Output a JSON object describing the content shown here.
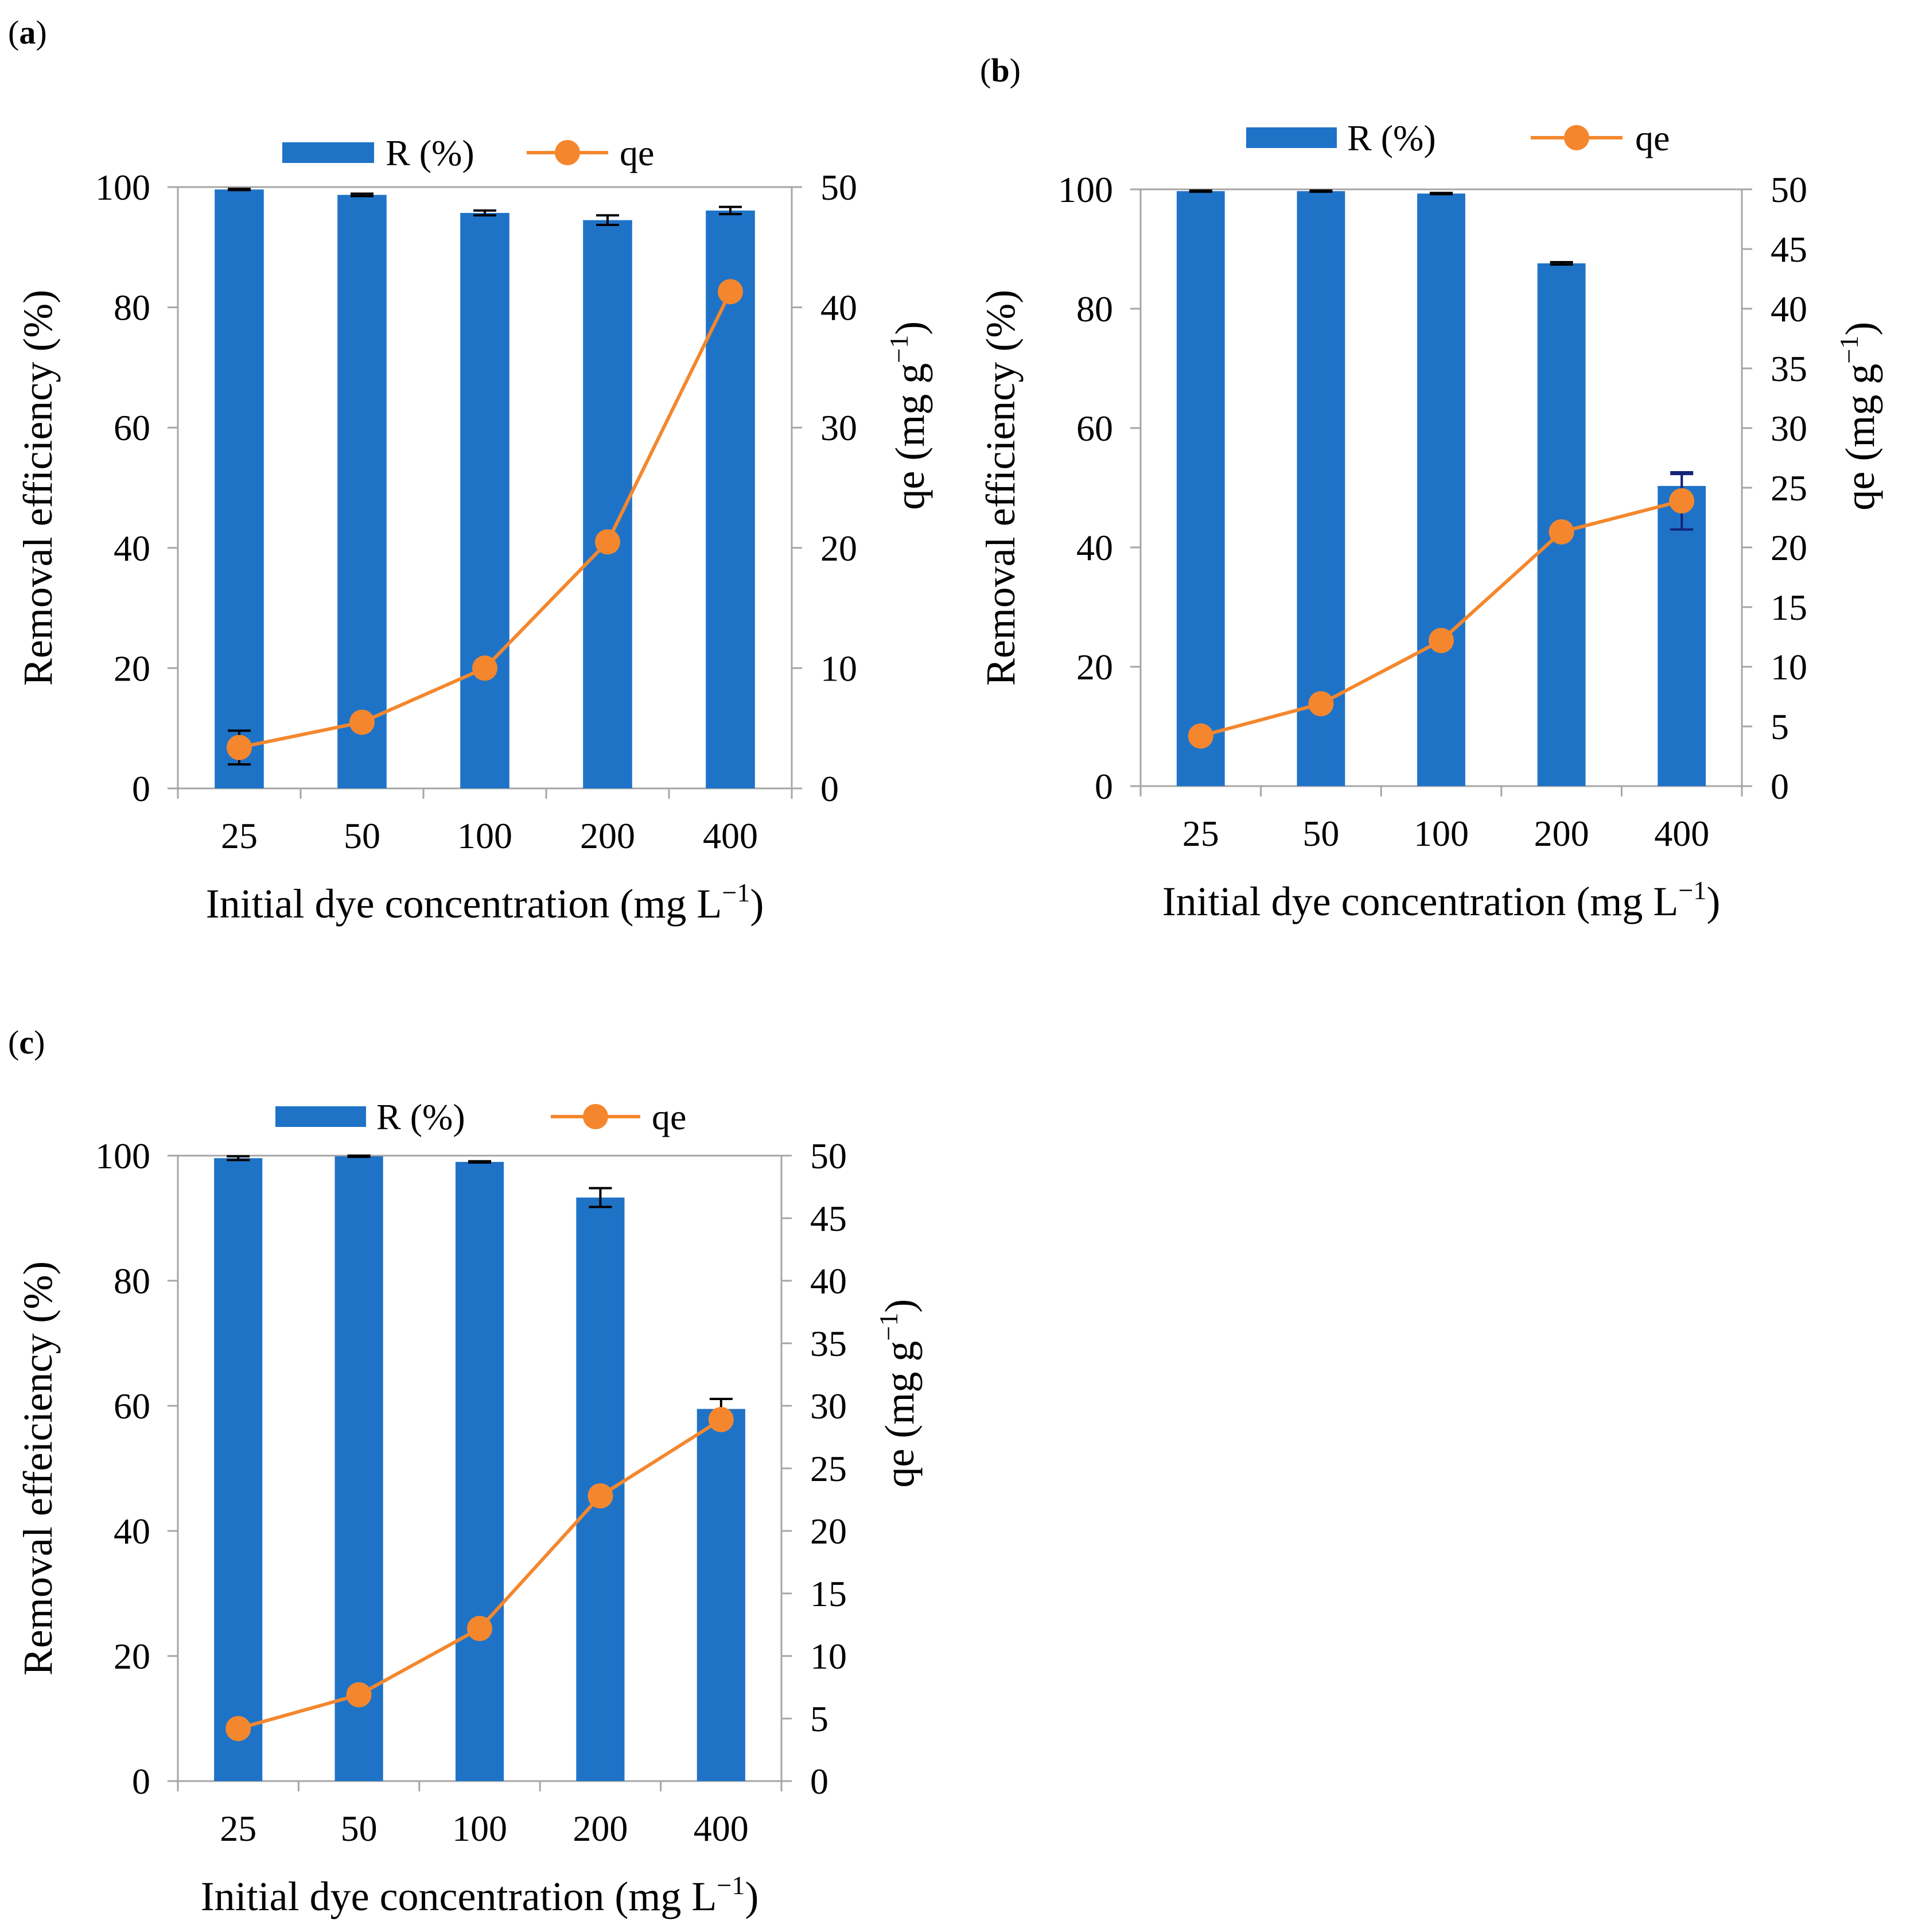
{
  "colors": {
    "bar": "#1f73c7",
    "line": "#f4872d",
    "errorbar": "#000000",
    "errorbar_dark": "#14237a",
    "frame": "#a6a6a6"
  },
  "chart_data": [
    {
      "panel_prefix": "(",
      "panel_letter": "a",
      "panel_suffix": ")",
      "type": "bar+line",
      "categories": [
        "25",
        "50",
        "100",
        "200",
        "400"
      ],
      "series": [
        {
          "name": "R (%)",
          "kind": "bar",
          "axis": "left",
          "values": [
            99.6,
            98.7,
            95.7,
            94.5,
            96.1
          ],
          "errors": [
            0.1,
            0.2,
            0.4,
            0.8,
            0.6
          ]
        },
        {
          "name": "qe",
          "kind": "line",
          "axis": "right",
          "values": [
            3.4,
            5.5,
            10.0,
            20.5,
            41.3
          ],
          "errors": [
            1.4,
            0,
            0,
            0,
            0
          ]
        }
      ],
      "xlabel": "Initial dye concentration (mg L",
      "xlabel_sup": "−1",
      "xlabel_end": ")",
      "ylabel_left": "Removal efficiency (%)",
      "ylabel_right": "qe (mg g",
      "ylabel_right_sup": "−1",
      "ylabel_right_end": ")",
      "ylim_left": [
        0,
        100
      ],
      "ylim_right": [
        0,
        50
      ],
      "left_ticks": [
        "0",
        "20",
        "40",
        "60",
        "80",
        "100"
      ],
      "right_ticks": [
        "0",
        "10",
        "20",
        "30",
        "40",
        "50"
      ],
      "legend": {
        "bar_label": "R (%)",
        "line_label": "qe"
      }
    },
    {
      "panel_prefix": "(",
      "panel_letter": "b",
      "panel_suffix": ")",
      "type": "bar+line",
      "categories": [
        "25",
        "50",
        "100",
        "200",
        "400"
      ],
      "series": [
        {
          "name": "R (%)",
          "kind": "bar",
          "axis": "left",
          "values": [
            99.7,
            99.7,
            99.3,
            87.6,
            50.3
          ],
          "errors": [
            0.1,
            0.1,
            0.1,
            0.2,
            2.0
          ]
        },
        {
          "name": "qe",
          "kind": "line",
          "axis": "right",
          "values": [
            4.2,
            6.9,
            12.2,
            21.3,
            23.9
          ],
          "errors": [
            0,
            0,
            0,
            0,
            2.4
          ]
        }
      ],
      "xlabel": "Initial dye concentration (mg L",
      "xlabel_sup": "−1",
      "xlabel_end": ")",
      "ylabel_left": "Removal efficiency (%)",
      "ylabel_right": "qe (mg g",
      "ylabel_right_sup": "−1",
      "ylabel_right_end": ")",
      "ylim_left": [
        0,
        100
      ],
      "ylim_right": [
        0,
        50
      ],
      "left_ticks": [
        "0",
        "20",
        "40",
        "60",
        "80",
        "100"
      ],
      "right_ticks": [
        "0",
        "5",
        "10",
        "15",
        "20",
        "25",
        "30",
        "35",
        "40",
        "45",
        "50"
      ],
      "legend": {
        "bar_label": "R (%)",
        "line_label": "qe"
      }
    },
    {
      "panel_prefix": "(",
      "panel_letter": "c",
      "panel_suffix": ")",
      "type": "bar+line",
      "categories": [
        "25",
        "50",
        "100",
        "200",
        "400"
      ],
      "series": [
        {
          "name": "R (%)",
          "kind": "bar",
          "axis": "left",
          "values": [
            99.6,
            99.9,
            99.0,
            93.3,
            59.5
          ],
          "errors": [
            0.3,
            0.1,
            0.1,
            1.5,
            1.6
          ]
        },
        {
          "name": "qe",
          "kind": "line",
          "axis": "right",
          "values": [
            4.2,
            6.9,
            12.2,
            22.8,
            28.9
          ],
          "errors": [
            0,
            0,
            0,
            0,
            0
          ]
        }
      ],
      "xlabel": "Initial dye concentration (mg L",
      "xlabel_sup": "−1",
      "xlabel_end": ")",
      "ylabel_left": "Removal effeiciency (%)",
      "ylabel_right": "qe (mg g",
      "ylabel_right_sup": "−1",
      "ylabel_right_end": ")",
      "ylim_left": [
        0,
        100
      ],
      "ylim_right": [
        0,
        50
      ],
      "left_ticks": [
        "0",
        "20",
        "40",
        "60",
        "80",
        "100"
      ],
      "right_ticks": [
        "0",
        "5",
        "10",
        "15",
        "20",
        "25",
        "30",
        "35",
        "40",
        "45",
        "50"
      ],
      "legend": {
        "bar_label": "R (%)",
        "line_label": "qe"
      }
    }
  ]
}
